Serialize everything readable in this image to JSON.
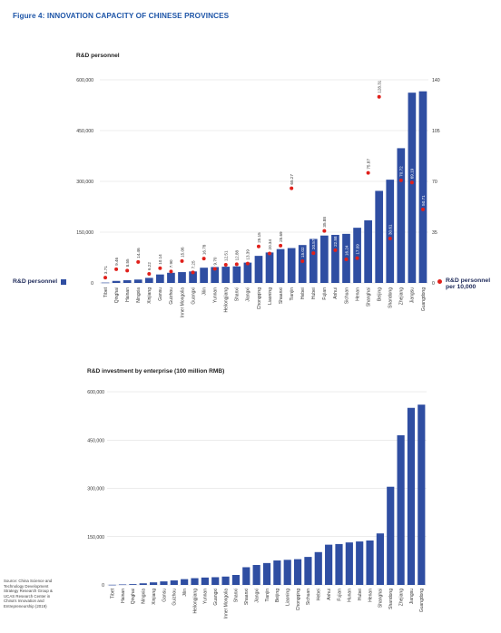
{
  "figure_title": "Figure 4: INNOVATION CAPACITY OF CHINESE PROVINCES",
  "chart1_title": "R&D personnel",
  "chart2_title": "R&D investment by enterprise (100 million RMB)",
  "legend": {
    "bar_label": "R&D personnel",
    "dot_label_line1": "R&D personnel",
    "dot_label_line2": "per 10,000"
  },
  "source": "Source: China Science and Technology Development Strategy Research Group & UCAS Research Center in China's Innovation and Entrepreneurship (2019)",
  "colors": {
    "bar": "#2f4ea2",
    "dot": "#e0201b",
    "grid": "#d9d9d9",
    "title": "#1f56a8"
  },
  "chart_data": [
    {
      "type": "bar",
      "title": "R&D personnel",
      "categories": [
        "Tibet",
        "Qinghai",
        "Hainan",
        "Ningxia",
        "Xinjiang",
        "Gansu",
        "Guizhou",
        "Inner Mongolia",
        "Guangxi",
        "Jilin",
        "Yunnan",
        "Heilongjiang",
        "Shanxi",
        "Jiangxi",
        "Chongqing",
        "Liaoning",
        "Shaanxi",
        "Tianjin",
        "Hebei",
        "Hubei",
        "Fujian",
        "Anhui",
        "Sichuan",
        "Henan",
        "Shanghai",
        "Beijing",
        "Shandong",
        "Zhejiang",
        "Jiangsu",
        "Guangdong"
      ],
      "series": [
        {
          "name": "R&D personnel",
          "axis": "left",
          "values": [
            1000,
            6000,
            8000,
            10000,
            15000,
            25000,
            30000,
            32000,
            34000,
            45000,
            47000,
            48000,
            49000,
            60000,
            80000,
            90000,
            100000,
            103000,
            112000,
            130000,
            140000,
            142000,
            145000,
            163000,
            185000,
            272000,
            305000,
            398000,
            562000,
            566000
          ]
        },
        {
          "name": "R&D personnel per 10,000",
          "axis": "right",
          "values": [
            3.71,
            9.46,
            8.55,
            14.46,
            6.22,
            10.14,
            7.9,
            15.06,
            7.25,
            16.78,
            9.7,
            12.51,
            12.88,
            13.39,
            25.15,
            20.34,
            25.69,
            65.27,
            15.02,
            20.57,
            35.88,
            22.58,
            16.24,
            17.09,
            75.87,
            128.31,
            30.61,
            70.72,
            69.19,
            50.71
          ],
          "labels": [
            "3.71",
            "9.46",
            "8.55",
            "14.46",
            "6.22",
            "10.14",
            "7.90",
            "15.06",
            "7.25",
            "16.78",
            "9.70",
            "12.51",
            "12.88",
            "13.39",
            "25.15",
            "20.34",
            "25.69",
            "65.27",
            "15.02",
            "20.57",
            "35.88",
            "22.58",
            "16.24",
            "17.09",
            "75.87",
            "128.31",
            "30.61",
            "70.72",
            "69.19",
            "50.71"
          ]
        }
      ],
      "ylim_left": [
        0,
        600000
      ],
      "yticks_left": [
        "0",
        "150,000",
        "300,000",
        "450,000",
        "600,000"
      ],
      "ylim_right": [
        0,
        140
      ],
      "yticks_right": [
        "0",
        "35",
        "70",
        "105",
        "140"
      ],
      "grid": true,
      "legend_position": "sides"
    },
    {
      "type": "bar",
      "title": "R&D investment by enterprise (100 million RMB)",
      "categories": [
        "Tibet",
        "Hainan",
        "Qinghai",
        "Ningxia",
        "Xinjiang",
        "Gansu",
        "Guizhou",
        "Jilin",
        "Heilongjiang",
        "Yunnan",
        "Guangxi",
        "Inner Mongolia",
        "Shanxi",
        "Shaanxi",
        "Jiangxi",
        "Tianjin",
        "Beijing",
        "Liaoning",
        "Chongqing",
        "Sichuan",
        "Hebei",
        "Anhui",
        "Fujian",
        "Hunan",
        "Hubei",
        "Henan",
        "Shanghai",
        "Shandong",
        "Zhejiang",
        "Jiangsu",
        "Guangdong"
      ],
      "values": [
        500,
        1500,
        2500,
        5000,
        8000,
        11000,
        14000,
        18000,
        21000,
        23000,
        24000,
        26000,
        31000,
        55000,
        62000,
        68000,
        76000,
        78000,
        80000,
        87000,
        102000,
        125000,
        127000,
        132000,
        135000,
        138000,
        160000,
        305000,
        465000,
        550000,
        560000
      ],
      "ylim": [
        0,
        600000
      ],
      "yticks": [
        "0",
        "150,000",
        "300,000",
        "450,000",
        "600,000"
      ],
      "grid": true
    }
  ]
}
